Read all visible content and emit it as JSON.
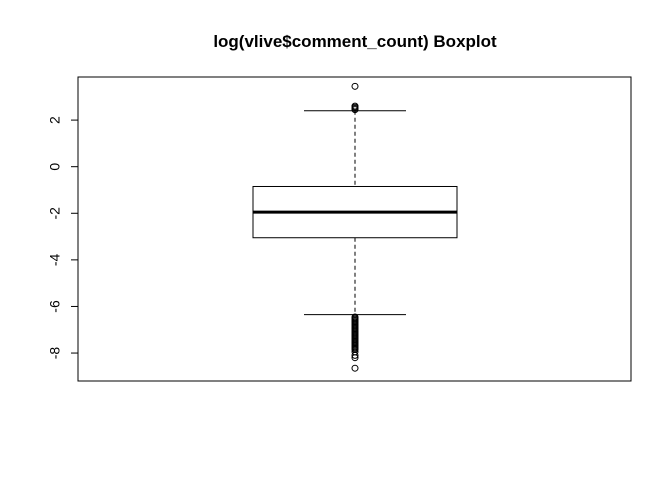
{
  "chart_data": {
    "type": "boxplot",
    "title": "log(vlive$comment_count) Boxplot",
    "xlabel": "",
    "ylabel": "",
    "ylim": [
      -9.2,
      3.85
    ],
    "yticks": [
      2,
      0,
      -2,
      -4,
      -6,
      -8
    ],
    "grid": false,
    "box": {
      "whisker_low": -6.35,
      "q1": -3.05,
      "median": -1.95,
      "q3": -0.85,
      "whisker_high": 2.4
    },
    "outliers_high": [
      2.45,
      2.5,
      2.55,
      2.6,
      3.45
    ],
    "outliers_low": [
      -6.45,
      -6.5,
      -6.55,
      -6.6,
      -6.65,
      -6.7,
      -6.75,
      -6.8,
      -6.85,
      -6.9,
      -6.95,
      -7.0,
      -7.05,
      -7.1,
      -7.15,
      -7.2,
      -7.25,
      -7.3,
      -7.35,
      -7.4,
      -7.45,
      -7.5,
      -7.55,
      -7.6,
      -7.65,
      -7.7,
      -7.75,
      -7.8,
      -7.85,
      -7.95,
      -8.1,
      -8.2,
      -8.65
    ]
  }
}
